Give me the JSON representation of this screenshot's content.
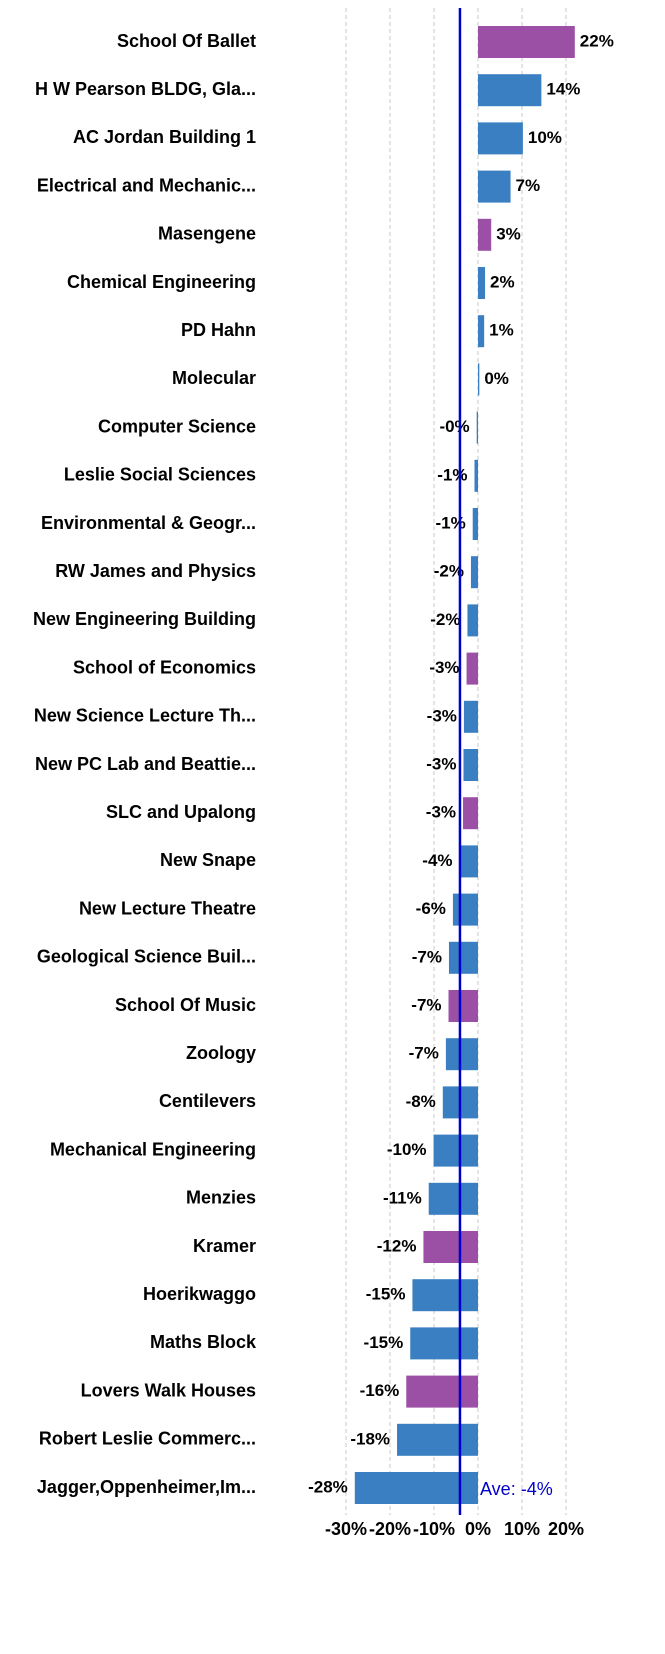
{
  "chart_data": {
    "type": "hbar",
    "categories": [
      "School Of Ballet",
      "H W Pearson BLDG, Gla...",
      "AC Jordan Building 1",
      "Electrical and Mechanic...",
      "Masengene",
      "Chemical Engineering",
      "PD Hahn",
      "Molecular",
      "Computer Science",
      "Leslie Social Sciences",
      "Environmental & Geogr...",
      "RW James and Physics",
      "New Engineering Building",
      "School of Economics",
      "New Science Lecture Th...",
      "New PC Lab and Beattie...",
      "SLC and Upalong",
      "New Snape",
      "New Lecture Theatre",
      "Geological Science Buil...",
      "School Of Music",
      "Zoology",
      "Centilevers",
      "Mechanical Engineering",
      "Menzies",
      "Kramer",
      "Hoerikwaggo",
      "Maths Block",
      "Lovers Walk Houses",
      "Robert Leslie Commerc...",
      "Jagger,Oppenheimer,Im..."
    ],
    "values": [
      22,
      14.4,
      10.2,
      7.4,
      3,
      1.6,
      1.4,
      0.3,
      -0.3,
      -0.8,
      -1.2,
      -1.6,
      -2.4,
      -2.6,
      -3.2,
      -3.3,
      -3.4,
      -4.2,
      -5.7,
      -6.6,
      -6.7,
      -7.3,
      -8,
      -10.1,
      -11.2,
      -12.4,
      -14.9,
      -15.4,
      -16.3,
      -18.4,
      -28
    ],
    "value_labels": [
      "22%",
      "14%",
      "10%",
      "7%",
      "3%",
      "2%",
      "1%",
      "0%",
      "-0%",
      "-1%",
      "-1%",
      "-2%",
      "-2%",
      "-3%",
      "-3%",
      "-3%",
      "-3%",
      "-4%",
      "-6%",
      "-7%",
      "-7%",
      "-7%",
      "-8%",
      "-10%",
      "-11%",
      "-12%",
      "-15%",
      "-15%",
      "-16%",
      "-18%",
      "-28%"
    ],
    "colors": [
      "#9b4fa5",
      "#3a7fc1",
      "#3a7fc1",
      "#3a7fc1",
      "#9b4fa5",
      "#3a7fc1",
      "#3a7fc1",
      "#3a7fc1",
      "#3a7fc1",
      "#3a7fc1",
      "#3a7fc1",
      "#3a7fc1",
      "#3a7fc1",
      "#9b4fa5",
      "#3a7fc1",
      "#3a7fc1",
      "#9b4fa5",
      "#3a7fc1",
      "#3a7fc1",
      "#3a7fc1",
      "#9b4fa5",
      "#3a7fc1",
      "#3a7fc1",
      "#3a7fc1",
      "#3a7fc1",
      "#9b4fa5",
      "#3a7fc1",
      "#3a7fc1",
      "#9b4fa5",
      "#3a7fc1",
      "#3a7fc1"
    ],
    "xlim": [
      -30,
      30
    ],
    "xticks": [
      {
        "value": -30,
        "label": "-30%"
      },
      {
        "value": -20,
        "label": "-20%"
      },
      {
        "value": -10,
        "label": "-10%"
      },
      {
        "value": 0,
        "label": "0%"
      },
      {
        "value": 10,
        "label": "10%"
      },
      {
        "value": 20,
        "label": "20%"
      }
    ],
    "grid": true,
    "average_line": {
      "value": -4.1,
      "label": "Ave: -4%",
      "color": "#0000cc"
    }
  }
}
